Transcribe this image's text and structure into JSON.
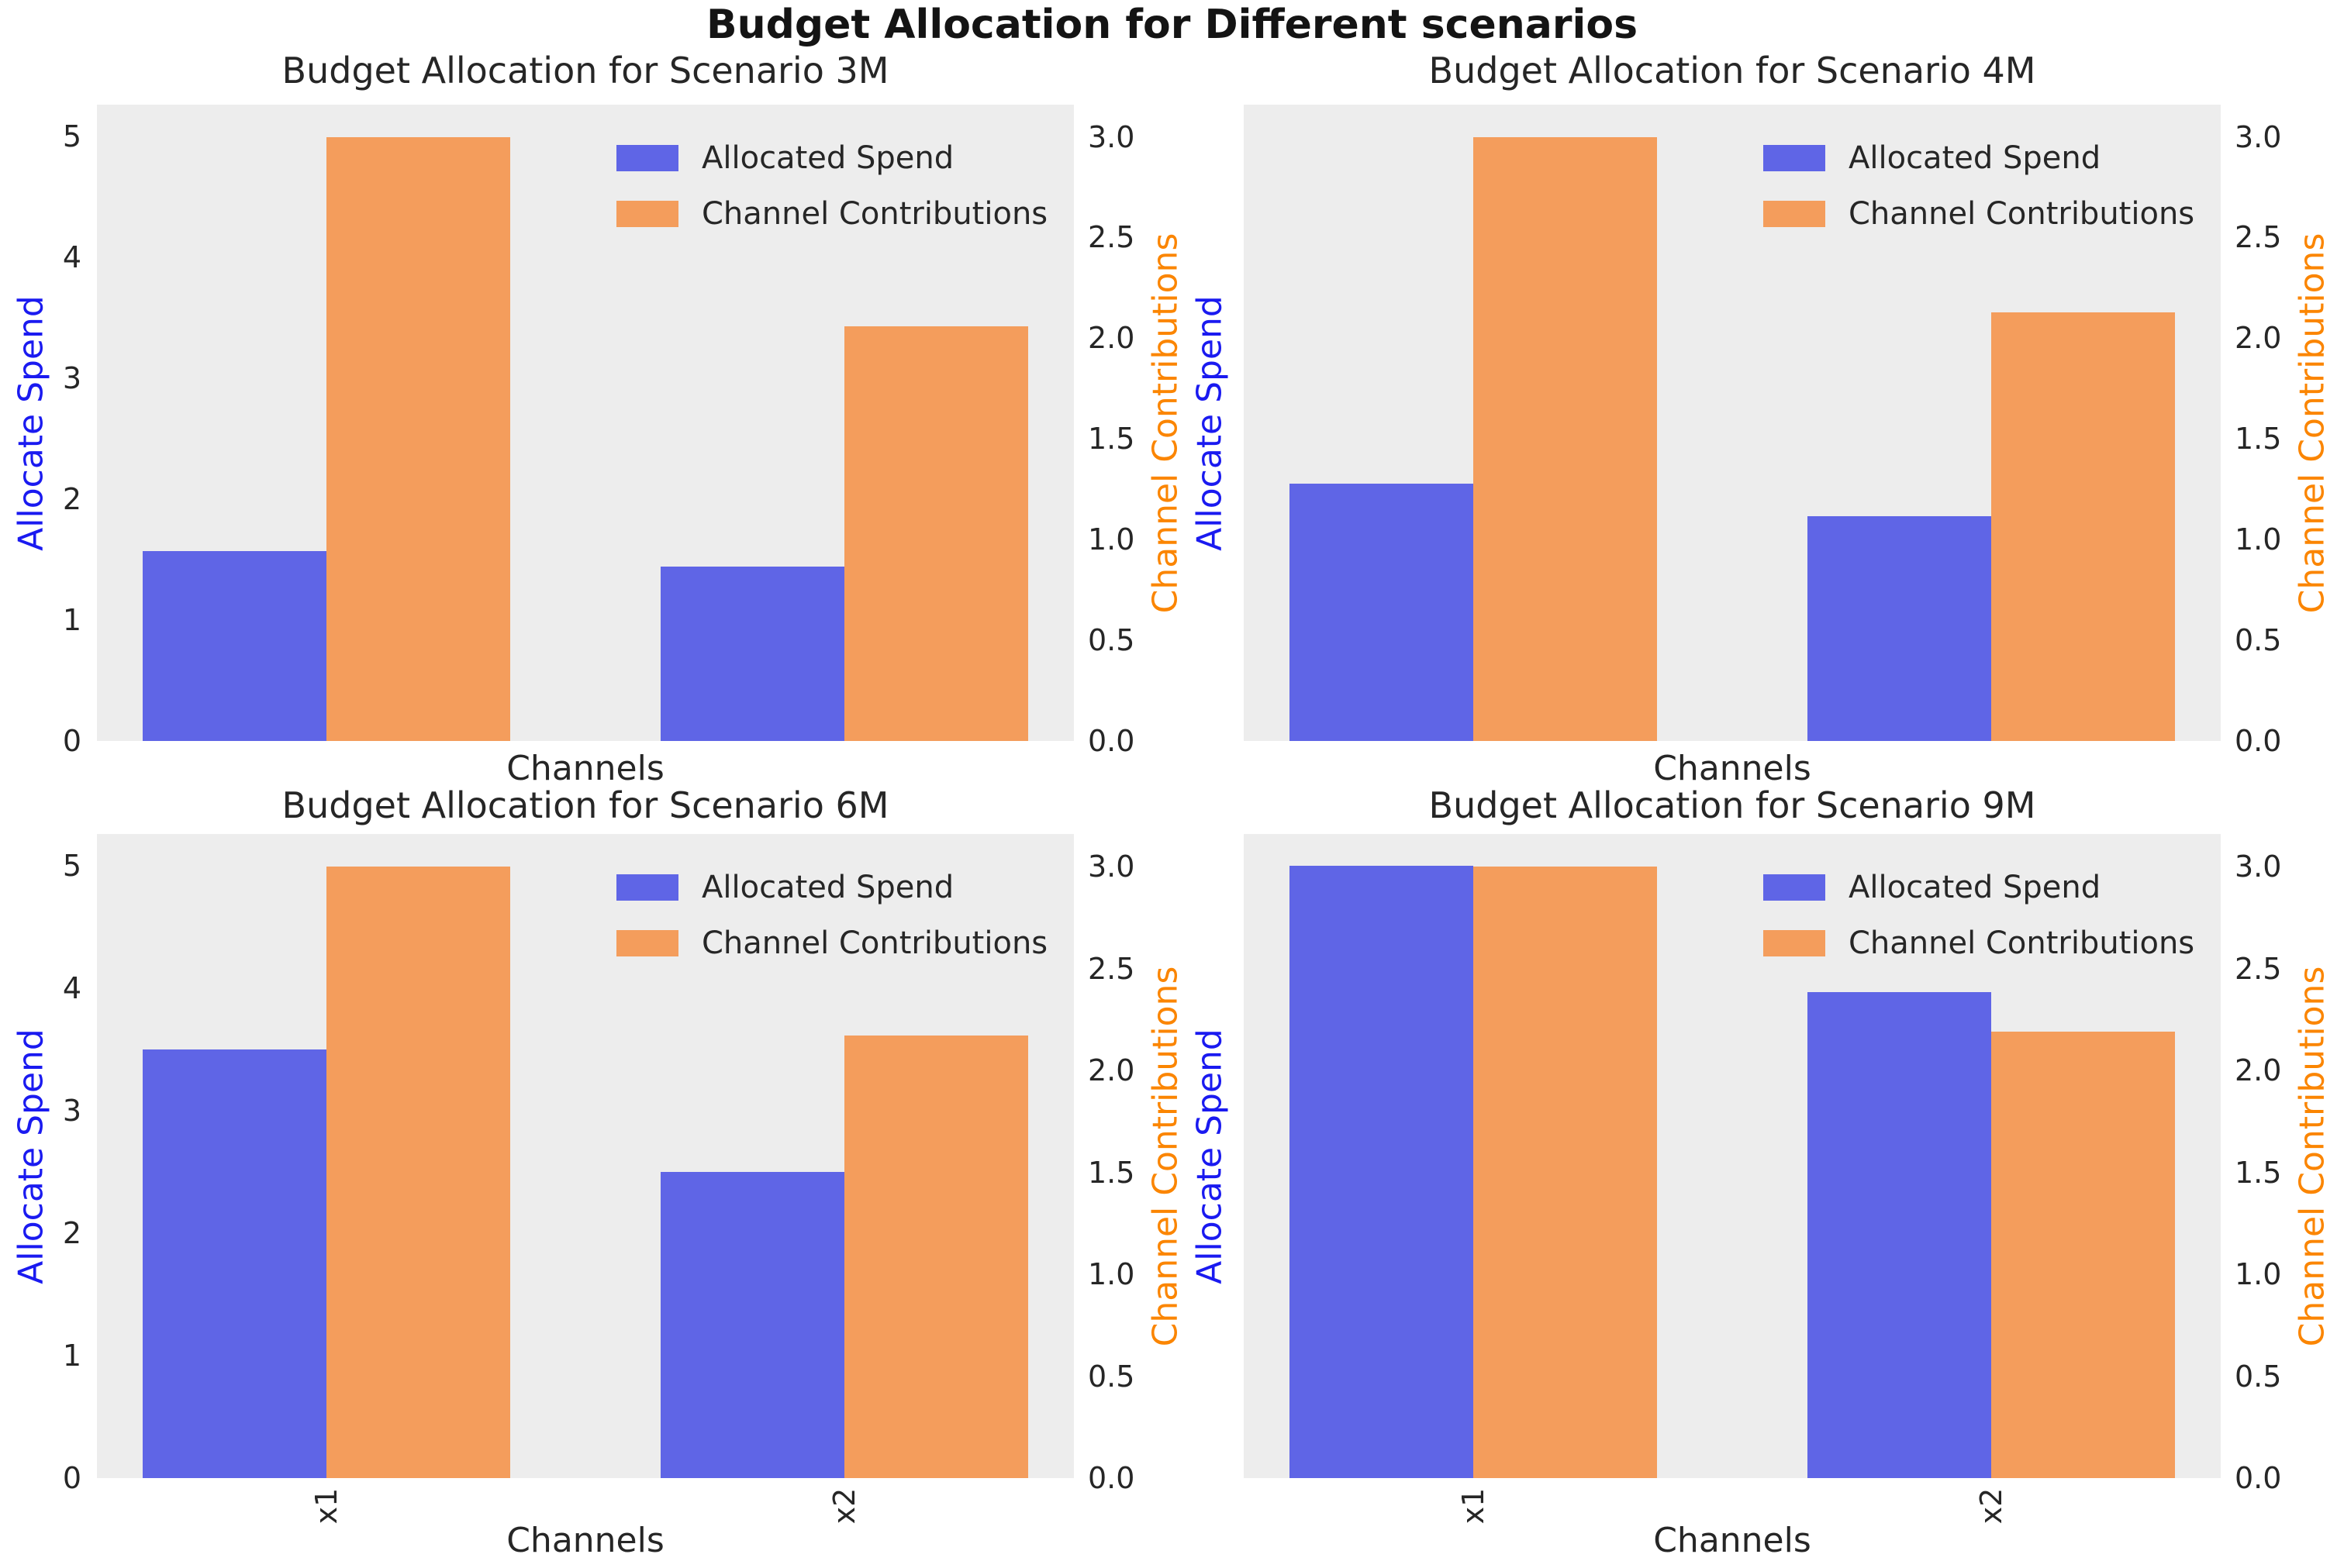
{
  "suptitle": "Budget Allocation for Different scenarios",
  "colors": {
    "spend_bar": "#5F65E6",
    "contrib_bar": "#F49D5C",
    "plot_bg": "#EDEDED",
    "figure_bg": "#FFFFFF",
    "ylabel_left": "#1A1AF0",
    "ylabel_right": "#FB8500",
    "tick_text": "#262626",
    "title_text": "#262626",
    "suptitle_text": "#141414",
    "legend_text": "#262626"
  },
  "axes": {
    "xlabel": "Channels",
    "ylabel_left": "Allocate Spend",
    "ylabel_right": "Channel Contributions",
    "ylim_left": [
      0,
      5.26
    ],
    "ylim_right": [
      0,
      3.16
    ],
    "yticks_left": [
      0,
      1,
      2,
      3,
      4,
      5
    ],
    "yticks_right": [
      0.0,
      0.5,
      1.0,
      1.5,
      2.0,
      2.5,
      3.0
    ],
    "grid": false
  },
  "legend": {
    "position": "upper right",
    "items": [
      {
        "label": "Allocated Spend",
        "color_key": "spend_bar"
      },
      {
        "label": "Channel Contributions",
        "color_key": "contrib_bar"
      }
    ]
  },
  "chart_data": [
    {
      "type": "bar",
      "title": "Budget Allocation for Scenario 3M",
      "categories": [
        "x1",
        "x2"
      ],
      "series": [
        {
          "name": "Allocated Spend",
          "axis": "left",
          "values": [
            1.57,
            1.44
          ]
        },
        {
          "name": "Channel Contributions",
          "axis": "right",
          "values": [
            3.0,
            2.06
          ]
        }
      ],
      "show_left_ticklabels": true,
      "show_xticklabels": false
    },
    {
      "type": "bar",
      "title": "Budget Allocation for Scenario 4M",
      "categories": [
        "x1",
        "x2"
      ],
      "series": [
        {
          "name": "Allocated Spend",
          "axis": "left",
          "values": [
            2.13,
            1.86
          ]
        },
        {
          "name": "Channel Contributions",
          "axis": "right",
          "values": [
            3.0,
            2.13
          ]
        }
      ],
      "show_left_ticklabels": false,
      "show_xticklabels": false
    },
    {
      "type": "bar",
      "title": "Budget Allocation for Scenario 6M",
      "categories": [
        "x1",
        "x2"
      ],
      "series": [
        {
          "name": "Allocated Spend",
          "axis": "left",
          "values": [
            3.5,
            2.5
          ]
        },
        {
          "name": "Channel Contributions",
          "axis": "right",
          "values": [
            3.0,
            2.17
          ]
        }
      ],
      "show_left_ticklabels": true,
      "show_xticklabels": true
    },
    {
      "type": "bar",
      "title": "Budget Allocation for Scenario 9M",
      "categories": [
        "x1",
        "x2"
      ],
      "series": [
        {
          "name": "Allocated Spend",
          "axis": "left",
          "values": [
            5.0,
            3.97
          ]
        },
        {
          "name": "Channel Contributions",
          "axis": "right",
          "values": [
            3.0,
            2.19
          ]
        }
      ],
      "show_left_ticklabels": false,
      "show_xticklabels": true
    }
  ]
}
